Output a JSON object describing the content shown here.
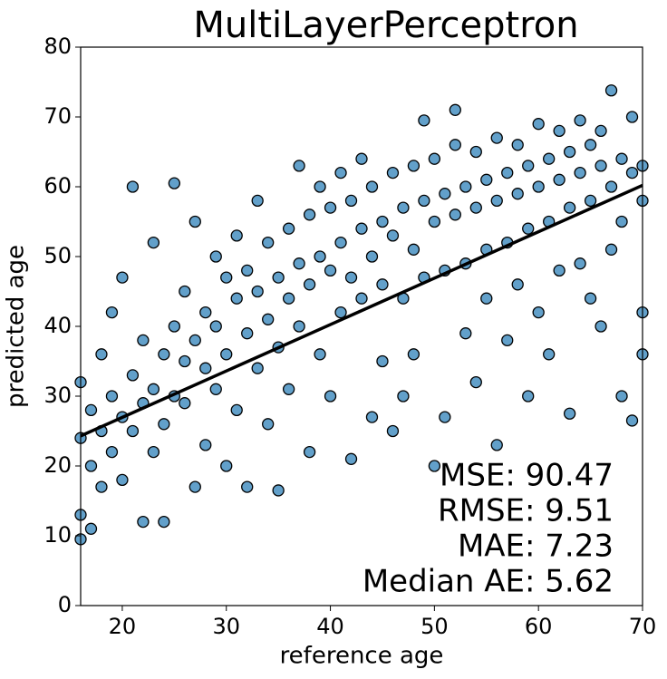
{
  "chart_data": {
    "type": "scatter",
    "title": "MultiLayerPerceptron",
    "x_label": "reference age",
    "y_label": "predicted age",
    "color": "#1f77b4",
    "edge_color": "#000000",
    "x": [
      16,
      16,
      16,
      16,
      17,
      17,
      17,
      18,
      18,
      18,
      19,
      19,
      19,
      20,
      20,
      20,
      21,
      21,
      21,
      22,
      22,
      22,
      23,
      23,
      23,
      24,
      24,
      24,
      25,
      25,
      25,
      26,
      26,
      26,
      27,
      27,
      27,
      28,
      28,
      28,
      29,
      29,
      29,
      30,
      30,
      30,
      31,
      31,
      31,
      32,
      32,
      32,
      33,
      33,
      33,
      34,
      34,
      34,
      35,
      35,
      35,
      36,
      36,
      36,
      37,
      37,
      37,
      38,
      38,
      38,
      39,
      39,
      39,
      40,
      40,
      40,
      41,
      41,
      41,
      42,
      42,
      42,
      43,
      43,
      43,
      44,
      44,
      44,
      45,
      45,
      45,
      46,
      46,
      46,
      47,
      47,
      47,
      48,
      48,
      48,
      49,
      49,
      49,
      50,
      50,
      50,
      51,
      51,
      51,
      52,
      52,
      52,
      53,
      53,
      53,
      54,
      54,
      54,
      55,
      55,
      55,
      56,
      56,
      56,
      57,
      57,
      57,
      58,
      58,
      58,
      59,
      59,
      59,
      60,
      60,
      60,
      61,
      61,
      61,
      62,
      62,
      62,
      63,
      63,
      63,
      64,
      64,
      64,
      65,
      65,
      65,
      66,
      66,
      66,
      67,
      67,
      67,
      68,
      68,
      68,
      69,
      69,
      69,
      70,
      70,
      70,
      70
    ],
    "values": [
      24,
      13,
      32,
      9.5,
      20,
      28,
      11,
      36,
      17,
      25,
      22,
      42,
      30,
      27,
      18,
      47,
      33,
      25,
      60,
      12,
      29,
      38,
      31,
      22,
      52,
      36,
      26,
      12,
      40,
      30,
      60.5,
      29,
      45,
      35,
      38,
      17,
      55,
      34,
      42,
      23,
      40,
      31,
      50,
      36,
      47,
      20,
      44,
      28,
      53,
      39,
      48,
      17,
      45,
      34,
      58,
      41,
      52,
      26,
      47,
      37,
      16.5,
      44,
      54,
      31,
      49,
      40,
      63,
      46,
      56,
      22,
      50,
      36,
      60,
      48,
      57,
      30,
      52,
      42,
      62,
      47,
      58,
      21,
      54,
      44,
      64,
      50,
      60,
      27,
      55,
      46,
      35,
      53,
      62,
      25,
      57,
      44,
      30,
      51,
      63,
      36,
      58,
      47,
      69.5,
      55,
      64,
      20,
      59,
      48,
      27,
      56,
      66,
      71,
      60,
      49,
      39,
      57,
      65,
      32,
      61,
      51,
      44,
      58,
      67,
      23,
      62,
      52,
      38,
      59,
      66,
      46,
      63,
      54,
      30,
      60,
      69,
      42,
      64,
      55,
      36,
      61,
      68,
      48,
      65,
      57,
      27.5,
      62,
      69.5,
      49,
      66,
      58,
      44,
      63,
      68,
      40,
      73.8,
      60,
      51,
      64,
      55,
      30,
      62,
      70,
      26.5,
      58,
      63,
      36,
      42
    ],
    "fit_line": {
      "color": "#000000",
      "x": [
        16,
        70
      ],
      "y": [
        24.3,
        60.2
      ]
    },
    "annotations": [
      "MSE: 90.47",
      "RMSE: 9.51",
      "MAE: 7.23",
      "Median AE: 5.62"
    ],
    "xlim": [
      16,
      70
    ],
    "ylim": [
      0,
      80
    ],
    "xticks": [
      20,
      30,
      40,
      50,
      60,
      70
    ],
    "yticks": [
      0,
      10,
      20,
      30,
      40,
      50,
      60,
      70,
      80
    ]
  }
}
